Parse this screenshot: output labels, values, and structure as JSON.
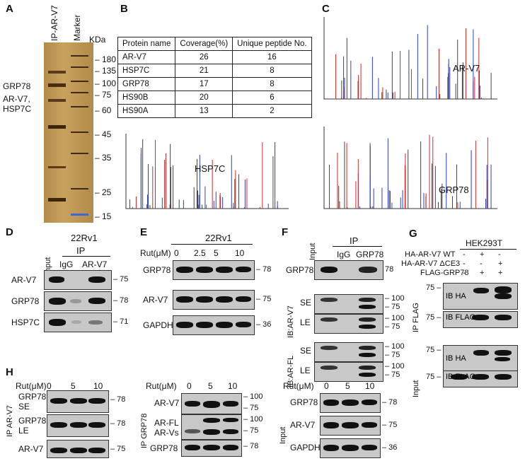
{
  "panels": {
    "A": "A",
    "B": "B",
    "C": "C",
    "D": "D",
    "E": "E",
    "F": "F",
    "G": "G",
    "H": "H"
  },
  "panelA": {
    "lane1": "IP-AR-V7",
    "lane2": "Marker",
    "kda": "KDa",
    "markers": [
      "180",
      "135",
      "100",
      "75",
      "60",
      "45",
      "35",
      "25",
      "15"
    ],
    "grp78": "GRP78",
    "arv7": "AR-V7,",
    "hsp7c": "HSP7C"
  },
  "table": {
    "headers": [
      "Protein name",
      "Coverage(%)",
      "Unique peptide No."
    ],
    "rows": [
      [
        "AR-V7",
        "26",
        "16"
      ],
      [
        "HSP7C",
        "21",
        "8"
      ],
      [
        "GRP78",
        "17",
        "8"
      ],
      [
        "HS90B",
        "20",
        "6"
      ],
      [
        "HS90A",
        "13",
        "2"
      ]
    ]
  },
  "spectra": {
    "arv7": "AR-V7",
    "hsp7c": "HSP7C",
    "grp78": "GRP78"
  },
  "panelD": {
    "cell": "22Rv1",
    "ip": "IP",
    "input": "Input",
    "igg": "IgG",
    "arv7": "AR-V7",
    "rows": [
      "AR-V7",
      "GRP78",
      "HSP7C"
    ],
    "mw": [
      "75",
      "78",
      "71"
    ]
  },
  "panelE": {
    "cell": "22Rv1",
    "rut": "Rut(μM)",
    "doses": [
      "0",
      "2.5",
      "5",
      "10"
    ],
    "rows": [
      "GRP78",
      "AR-V7",
      "GAPDH"
    ],
    "mw": [
      "78",
      "75",
      "36"
    ]
  },
  "panelF": {
    "input": "Input",
    "ip": "IP",
    "igg": "IgG",
    "grp78": "GRP78",
    "row": "GRP78",
    "mw78": "78",
    "ibarv7": "IB:AR-V7",
    "ibarfl": "IB:AR-FL",
    "se": "SE",
    "le": "LE",
    "mw100": "100",
    "mw75": "75"
  },
  "panelG": {
    "cell": "HEK293T",
    "l1": "HA-AR-V7 WT",
    "l2": "HA-AR-V7 ΔCE3",
    "l3": "FLAG-GRP78",
    "s1": [
      "-",
      "+",
      "-"
    ],
    "s2": [
      "-",
      "-",
      "+"
    ],
    "s3": [
      "-",
      "+",
      "+"
    ],
    "ipflag": "IP FLAG",
    "input": "Input",
    "ibha": "IB HA",
    "ibflag": "IB FLAG",
    "mw75": "75"
  },
  "panelH": {
    "rut": "Rut(μM)",
    "doses": [
      "0",
      "5",
      "10"
    ],
    "ip1": "IP AR-V7",
    "ip2": "IP GRP78",
    "inp": "Input",
    "r1": [
      "GRP78",
      "SE"
    ],
    "r2": [
      "GRP78",
      "LE"
    ],
    "r3": "AR-V7",
    "m1": [
      "78",
      "78",
      "75"
    ],
    "b2": [
      "AR-V7",
      "AR-FL",
      "AR-Vs",
      "GRP78"
    ],
    "m2": [
      "100",
      "75",
      "100",
      "75",
      "78"
    ],
    "b3": [
      "GRP78",
      "AR-V7",
      "GAPDH"
    ],
    "m3": [
      "78",
      "75",
      "36"
    ]
  }
}
